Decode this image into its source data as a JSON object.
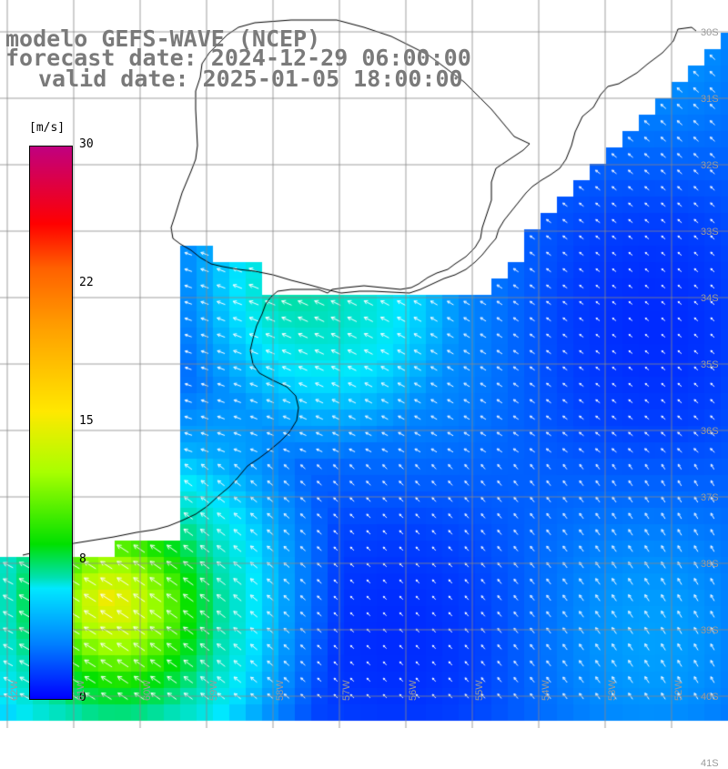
{
  "title": {
    "line1": "modelo GEFS-WAVE (NCEP)",
    "line2": "forecast date: 2024-12-29 06:00:00",
    "line3": "valid date: 2025-01-05 18:00:00"
  },
  "colorbar": {
    "unit": "[m/s]",
    "ticks": [
      "30",
      "22",
      "15",
      "8",
      "0"
    ],
    "range": [
      0,
      30
    ]
  },
  "graticule": {
    "lat_labels": [
      "30S",
      "31S",
      "32S",
      "33S",
      "34S",
      "35S",
      "36S",
      "37S",
      "38S",
      "39S",
      "40S",
      "41S"
    ],
    "lon_labels": [
      "62W",
      "61W",
      "60W",
      "59W",
      "58W",
      "57W",
      "56W",
      "55W",
      "54W",
      "53W",
      "52W",
      "51W"
    ],
    "grid_color": "#888888"
  },
  "colors": {
    "land": "#ffffff",
    "coastline": "#000000",
    "arrows": "#ffffff",
    "title_text": "#7a7a7a"
  }
}
